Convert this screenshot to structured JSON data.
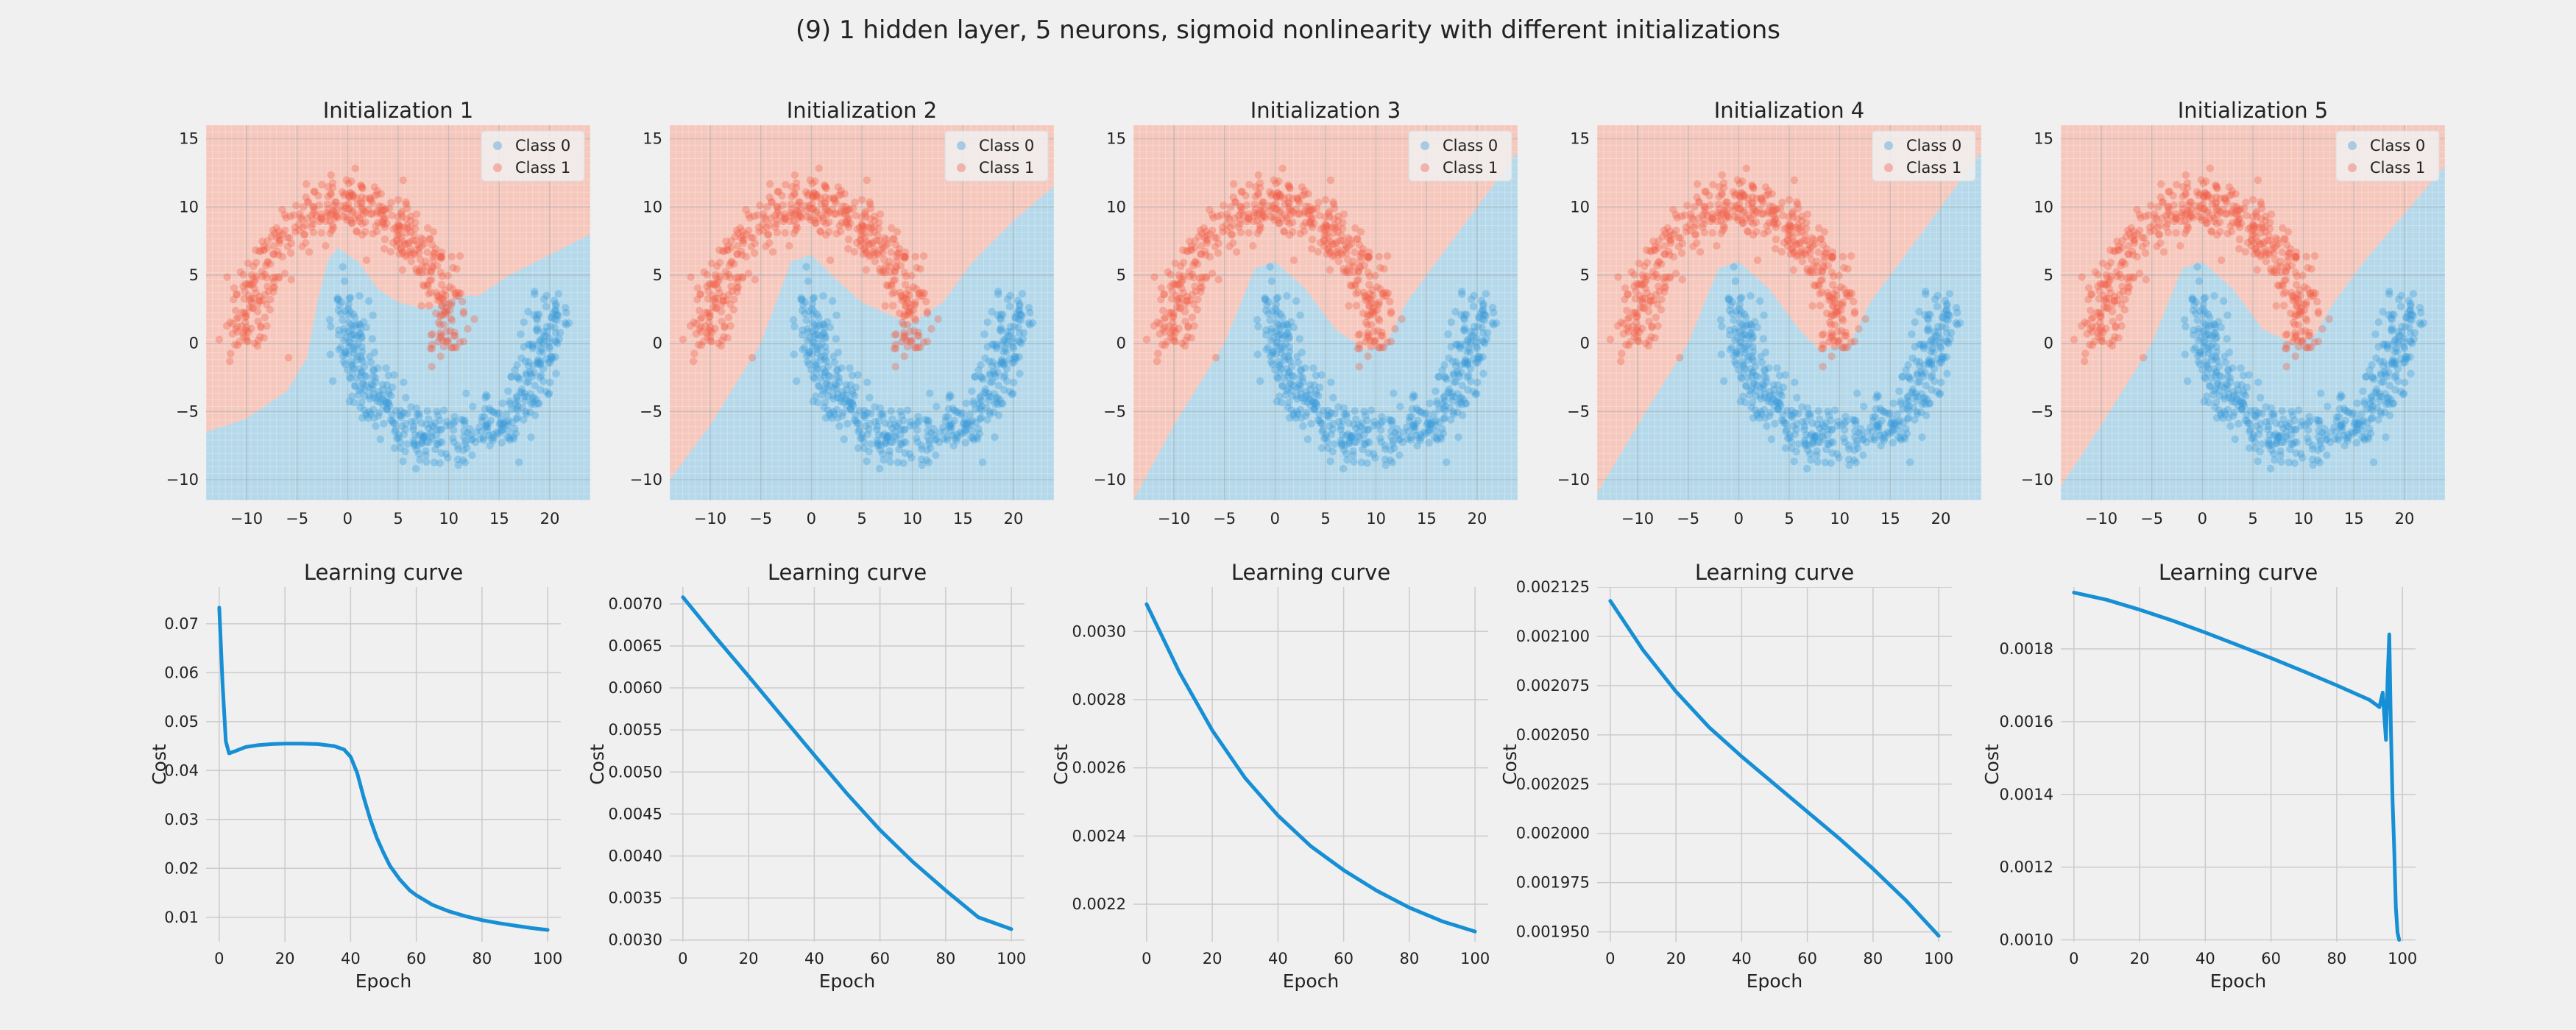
{
  "figure": {
    "suptitle": "(9) 1 hidden layer, 5 neurons, sigmoid nonlinearity with different initializations"
  },
  "colors": {
    "background": "#f0f0f0",
    "class0_region": "#b5d9ea",
    "class1_region": "#f6c8bd",
    "class0_point": "#3b9ad9",
    "class1_point": "#f2604a",
    "curve": "#178fd5",
    "grid": "#cbcbcb"
  },
  "chart_data": [
    {
      "type": "scatter",
      "title": "Initialization 1",
      "xlim": [
        -14,
        24
      ],
      "ylim": [
        -11.5,
        16
      ],
      "xticks": [
        -10,
        -5,
        0,
        5,
        10,
        15,
        20
      ],
      "yticks": [
        -10,
        -5,
        0,
        5,
        10,
        15
      ],
      "legend": [
        "Class 0",
        "Class 1"
      ],
      "legend_position": "top-right",
      "dataset": "two interleaved half-moons: Class 1 upper arc centred (0,0) radius ~10, Class 0 lower arc centred (10,3) radius ~10",
      "decision_boundary": [
        [
          -14,
          -6.5
        ],
        [
          -10,
          -5.5
        ],
        [
          -6,
          -3.5
        ],
        [
          -4,
          -1
        ],
        [
          -3,
          3
        ],
        [
          -2,
          6
        ],
        [
          -1,
          7
        ],
        [
          1,
          6
        ],
        [
          3,
          4
        ],
        [
          5,
          3
        ],
        [
          8,
          2.5
        ],
        [
          11,
          3.5
        ],
        [
          13,
          3.5
        ],
        [
          16,
          5
        ],
        [
          20,
          6.5
        ],
        [
          24,
          8
        ]
      ]
    },
    {
      "type": "scatter",
      "title": "Initialization 2",
      "xlim": [
        -14,
        24
      ],
      "ylim": [
        -11.5,
        16
      ],
      "xticks": [
        -10,
        -5,
        0,
        5,
        10,
        15,
        20
      ],
      "yticks": [
        -10,
        -5,
        0,
        5,
        10,
        15
      ],
      "legend": [
        "Class 0",
        "Class 1"
      ],
      "legend_position": "top-right",
      "decision_boundary": [
        [
          -14,
          -10
        ],
        [
          -10,
          -6
        ],
        [
          -5,
          0
        ],
        [
          -2,
          6
        ],
        [
          0,
          6.5
        ],
        [
          2,
          5
        ],
        [
          5,
          3
        ],
        [
          8,
          2
        ],
        [
          10,
          1.5
        ],
        [
          13,
          3
        ],
        [
          16,
          6
        ],
        [
          20,
          9
        ],
        [
          24,
          11.5
        ]
      ]
    },
    {
      "type": "scatter",
      "title": "Initialization 3",
      "xlim": [
        -14,
        24
      ],
      "ylim": [
        -11.5,
        16
      ],
      "xticks": [
        -10,
        -5,
        0,
        5,
        10,
        15,
        20
      ],
      "yticks": [
        -10,
        -5,
        0,
        5,
        10,
        15
      ],
      "legend": [
        "Class 0",
        "Class 1"
      ],
      "legend_position": "top-right",
      "decision_boundary": [
        [
          -14,
          -11.5
        ],
        [
          -10,
          -6
        ],
        [
          -5,
          0
        ],
        [
          -2,
          5.5
        ],
        [
          0,
          6
        ],
        [
          3,
          4
        ],
        [
          6,
          1
        ],
        [
          9,
          -0.5
        ],
        [
          11,
          0
        ],
        [
          13,
          3
        ],
        [
          16,
          6
        ],
        [
          20,
          10
        ],
        [
          24,
          14
        ]
      ]
    },
    {
      "type": "scatter",
      "title": "Initialization 4",
      "xlim": [
        -14,
        24
      ],
      "ylim": [
        -11.5,
        16
      ],
      "xticks": [
        -10,
        -5,
        0,
        5,
        10,
        15,
        20
      ],
      "yticks": [
        -10,
        -5,
        0,
        5,
        10,
        15
      ],
      "legend": [
        "Class 0",
        "Class 1"
      ],
      "legend_position": "top-right",
      "decision_boundary": [
        [
          -14,
          -11
        ],
        [
          -10,
          -6
        ],
        [
          -5,
          0
        ],
        [
          -2,
          5.5
        ],
        [
          0,
          6
        ],
        [
          3,
          4
        ],
        [
          6,
          1
        ],
        [
          8,
          -0.5
        ],
        [
          11,
          0
        ],
        [
          13,
          3
        ],
        [
          16,
          6
        ],
        [
          20,
          10
        ],
        [
          24,
          14
        ]
      ]
    },
    {
      "type": "scatter",
      "title": "Initialization 5",
      "xlim": [
        -14,
        24
      ],
      "ylim": [
        -11.5,
        16
      ],
      "xticks": [
        -10,
        -5,
        0,
        5,
        10,
        15,
        20
      ],
      "yticks": [
        -10,
        -5,
        0,
        5,
        10,
        15
      ],
      "legend": [
        "Class 0",
        "Class 1"
      ],
      "legend_position": "top-right",
      "decision_boundary": [
        [
          -14,
          -10.5
        ],
        [
          -10,
          -6
        ],
        [
          -5,
          0
        ],
        [
          -2,
          5.5
        ],
        [
          0,
          6
        ],
        [
          3,
          4
        ],
        [
          6,
          1
        ],
        [
          9,
          0
        ],
        [
          11,
          0.5
        ],
        [
          13,
          3
        ],
        [
          16,
          6
        ],
        [
          20,
          9.5
        ],
        [
          24,
          13
        ]
      ]
    },
    {
      "type": "line",
      "title": "Learning curve",
      "xlabel": "Epoch",
      "ylabel": "Cost",
      "xlim": [
        -4,
        104
      ],
      "ylim": [
        0.005,
        0.0775
      ],
      "xticks": [
        0,
        20,
        40,
        60,
        80,
        100
      ],
      "yticks": [
        0.01,
        0.02,
        0.03,
        0.04,
        0.05,
        0.06,
        0.07
      ],
      "ytick_labels": [
        "0.01",
        "0.02",
        "0.03",
        "0.04",
        "0.05",
        "0.06",
        "0.07"
      ],
      "x": [
        0,
        1,
        2,
        3,
        5,
        8,
        12,
        16,
        20,
        25,
        30,
        35,
        38,
        40,
        42,
        44,
        46,
        48,
        50,
        52,
        55,
        58,
        60,
        65,
        70,
        75,
        80,
        85,
        90,
        95,
        100
      ],
      "y": [
        0.0733,
        0.058,
        0.046,
        0.0435,
        0.044,
        0.0448,
        0.0452,
        0.0454,
        0.0455,
        0.0455,
        0.0454,
        0.045,
        0.0443,
        0.0428,
        0.0395,
        0.0345,
        0.03,
        0.0262,
        0.0232,
        0.0205,
        0.0177,
        0.0155,
        0.0145,
        0.0125,
        0.0112,
        0.0102,
        0.0094,
        0.0088,
        0.0083,
        0.0078,
        0.0074
      ]
    },
    {
      "type": "line",
      "title": "Learning curve",
      "xlabel": "Epoch",
      "ylabel": "Cost",
      "xlim": [
        -4,
        104
      ],
      "ylim": [
        0.00298,
        0.0072
      ],
      "xticks": [
        0,
        20,
        40,
        60,
        80,
        100
      ],
      "yticks": [
        0.003,
        0.0035,
        0.004,
        0.0045,
        0.005,
        0.0055,
        0.006,
        0.0065,
        0.007
      ],
      "ytick_labels": [
        "0.0030",
        "0.0035",
        "0.0040",
        "0.0045",
        "0.0050",
        "0.0055",
        "0.0060",
        "0.0065",
        "0.0070"
      ],
      "x": [
        0,
        10,
        20,
        30,
        40,
        50,
        60,
        70,
        80,
        90,
        100
      ],
      "y": [
        0.00708,
        0.0066,
        0.00614,
        0.00567,
        0.0052,
        0.00474,
        0.00431,
        0.00393,
        0.00359,
        0.00327,
        0.00313
      ]
    },
    {
      "type": "line",
      "title": "Learning curve",
      "xlabel": "Epoch",
      "ylabel": "Cost",
      "xlim": [
        -4,
        104
      ],
      "ylim": [
        0.00209,
        0.00313
      ],
      "xticks": [
        0,
        20,
        40,
        60,
        80,
        100
      ],
      "yticks": [
        0.0022,
        0.0024,
        0.0026,
        0.0028,
        0.003
      ],
      "ytick_labels": [
        "0.0022",
        "0.0024",
        "0.0026",
        "0.0028",
        "0.0030"
      ],
      "x": [
        0,
        10,
        20,
        30,
        40,
        50,
        60,
        70,
        80,
        90,
        100
      ],
      "y": [
        0.00308,
        0.00288,
        0.00271,
        0.00257,
        0.00246,
        0.00237,
        0.0023,
        0.00224,
        0.00219,
        0.00215,
        0.00212
      ]
    },
    {
      "type": "line",
      "title": "Learning curve",
      "xlabel": "Epoch",
      "ylabel": "Cost",
      "xlim": [
        -4,
        104
      ],
      "ylim": [
        0.001945,
        0.002125
      ],
      "xticks": [
        0,
        20,
        40,
        60,
        80,
        100
      ],
      "yticks": [
        0.00195,
        0.001975,
        0.002,
        0.002025,
        0.00205,
        0.002075,
        0.0021,
        0.002125
      ],
      "ytick_labels": [
        "0.001950",
        "0.001975",
        "0.002000",
        "0.002025",
        "0.002050",
        "0.002075",
        "0.002100",
        "0.002125"
      ],
      "x": [
        0,
        10,
        20,
        30,
        40,
        50,
        60,
        70,
        80,
        90,
        100
      ],
      "y": [
        0.002118,
        0.002093,
        0.002072,
        0.002054,
        0.002039,
        0.002025,
        0.002011,
        0.001997,
        0.001982,
        0.001966,
        0.001948
      ]
    },
    {
      "type": "line",
      "title": "Learning curve",
      "xlabel": "Epoch",
      "ylabel": "Cost",
      "xlim": [
        -4,
        104
      ],
      "ylim": [
        0.000995,
        0.00197
      ],
      "xticks": [
        0,
        20,
        40,
        60,
        80,
        100
      ],
      "yticks": [
        0.001,
        0.0012,
        0.0014,
        0.0016,
        0.0018
      ],
      "ytick_labels": [
        "0.0010",
        "0.0012",
        "0.0014",
        "0.0016",
        "0.0018"
      ],
      "x": [
        0,
        10,
        20,
        30,
        40,
        50,
        60,
        70,
        80,
        90,
        93,
        94,
        95,
        95.5,
        96,
        96.5,
        97,
        97.5,
        98,
        98.5,
        99
      ],
      "y": [
        0.001955,
        0.001935,
        0.001908,
        0.001878,
        0.001845,
        0.00181,
        0.001775,
        0.001738,
        0.0017,
        0.00166,
        0.00164,
        0.00168,
        0.00155,
        0.00172,
        0.00184,
        0.00158,
        0.00138,
        0.00125,
        0.00109,
        0.00102,
        0.001
      ]
    }
  ]
}
